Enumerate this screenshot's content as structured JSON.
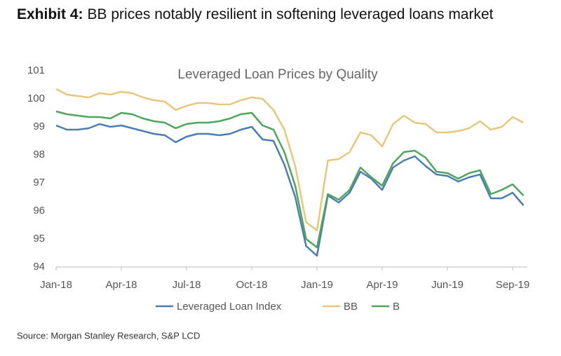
{
  "header": {
    "label": "Exhibit 4:",
    "title": "BB prices notably resilient in softening leveraged loans market"
  },
  "chart_data": {
    "type": "line",
    "title": "Leveraged Loan Prices by Quality",
    "categories": [
      "Jan-18",
      null,
      null,
      null,
      null,
      null,
      "Apr-18",
      null,
      null,
      null,
      null,
      null,
      "Jul-18",
      null,
      null,
      null,
      null,
      null,
      "Oct-18",
      null,
      null,
      null,
      null,
      null,
      "Jan-19",
      null,
      null,
      null,
      null,
      null,
      "Apr-19",
      null,
      null,
      null,
      null,
      null,
      "Jun-19",
      null,
      null,
      null,
      null,
      null,
      "Sep-19",
      null
    ],
    "series": [
      {
        "name": "Leveraged Loan Index",
        "color": "#4a7db6",
        "values": [
          99.05,
          98.9,
          98.9,
          98.95,
          99.1,
          99.0,
          99.05,
          98.95,
          98.85,
          98.75,
          98.7,
          98.45,
          98.65,
          98.75,
          98.75,
          98.7,
          98.75,
          98.9,
          99.0,
          98.55,
          98.5,
          97.65,
          96.5,
          94.75,
          94.4,
          96.55,
          96.3,
          96.65,
          97.4,
          97.15,
          96.75,
          97.55,
          97.8,
          97.95,
          97.6,
          97.3,
          97.25,
          97.05,
          97.2,
          97.3,
          96.45,
          96.45,
          96.65,
          96.2
        ]
      },
      {
        "name": "BB",
        "color": "#e8c77a",
        "values": [
          100.35,
          100.15,
          100.1,
          100.05,
          100.2,
          100.15,
          100.25,
          100.2,
          100.05,
          99.95,
          99.9,
          99.6,
          99.75,
          99.85,
          99.85,
          99.8,
          99.8,
          99.95,
          100.05,
          100.0,
          99.6,
          98.9,
          97.6,
          95.6,
          95.3,
          97.8,
          97.85,
          98.1,
          98.8,
          98.7,
          98.3,
          99.1,
          99.4,
          99.15,
          99.1,
          98.8,
          98.8,
          98.85,
          98.95,
          99.2,
          98.9,
          99.0,
          99.35,
          99.15
        ]
      },
      {
        "name": "B",
        "color": "#4ea65a",
        "values": [
          99.55,
          99.45,
          99.4,
          99.35,
          99.35,
          99.3,
          99.5,
          99.45,
          99.3,
          99.2,
          99.15,
          98.95,
          99.1,
          99.15,
          99.15,
          99.2,
          99.3,
          99.45,
          99.5,
          99.05,
          98.9,
          98.1,
          96.9,
          95.0,
          94.7,
          96.6,
          96.4,
          96.75,
          97.55,
          97.2,
          96.9,
          97.7,
          98.1,
          98.15,
          97.9,
          97.4,
          97.35,
          97.15,
          97.35,
          97.45,
          96.6,
          96.75,
          96.95,
          96.55
        ]
      }
    ],
    "ylim": [
      94,
      101
    ],
    "yticks": [
      94,
      95,
      96,
      97,
      98,
      99,
      100,
      101
    ],
    "grid": false
  },
  "source": "Source: Morgan Stanley Research, S&P LCD"
}
